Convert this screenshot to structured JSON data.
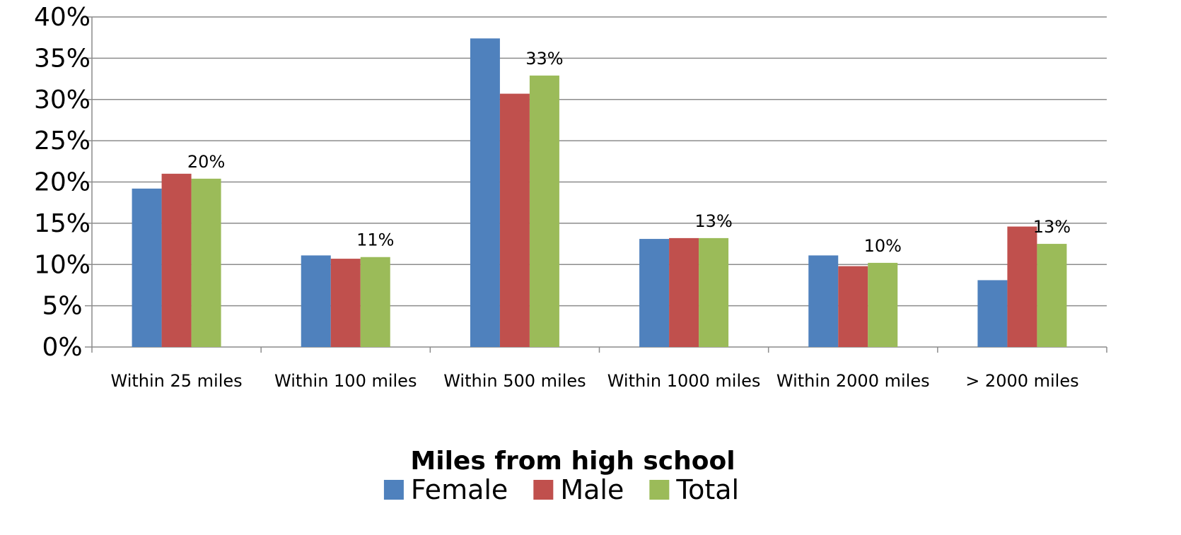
{
  "chart_data": {
    "type": "bar",
    "title": "",
    "xlabel": "Miles from high school",
    "ylabel": "",
    "ylim": [
      0,
      40
    ],
    "yticks": [
      "0%",
      "5%",
      "10%",
      "15%",
      "20%",
      "25%",
      "30%",
      "35%",
      "40%"
    ],
    "ytick_values": [
      0,
      5,
      10,
      15,
      20,
      25,
      30,
      35,
      40
    ],
    "grid": true,
    "legend_position": "bottom",
    "categories": [
      "Within 25 miles",
      "Within 100 miles",
      "Within 500 miles",
      "Within 1000 miles",
      "Within 2000 miles",
      "> 2000 miles"
    ],
    "series": [
      {
        "name": "Female",
        "color": "#4F81BD",
        "values": [
          19.2,
          11.1,
          37.4,
          13.1,
          11.1,
          8.1
        ]
      },
      {
        "name": "Male",
        "color": "#C0504D",
        "values": [
          21.0,
          10.7,
          30.7,
          13.2,
          9.8,
          14.6
        ]
      },
      {
        "name": "Total",
        "color": "#9BBB59",
        "values": [
          20.4,
          10.9,
          32.9,
          13.2,
          10.2,
          12.5
        ]
      }
    ],
    "data_labels": {
      "series": "Total",
      "labels": [
        "20%",
        "11%",
        "33%",
        "13%",
        "10%",
        "13%"
      ]
    }
  }
}
